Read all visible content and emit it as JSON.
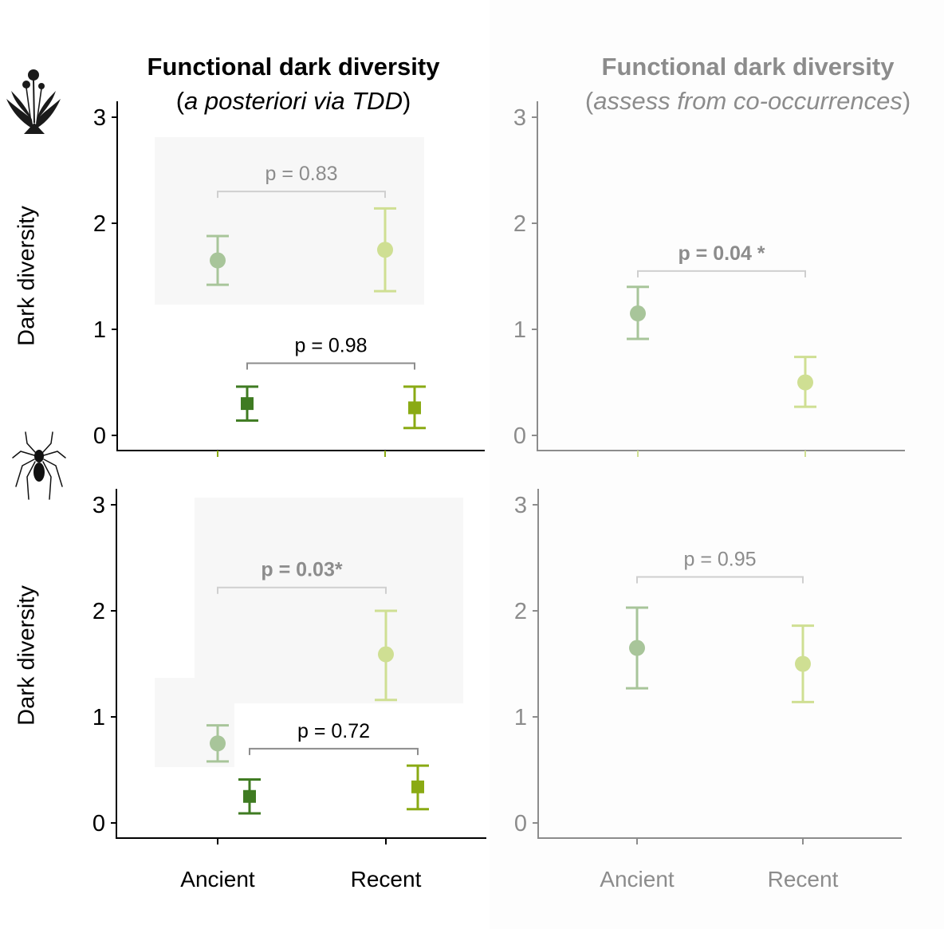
{
  "titles": {
    "left": {
      "line1": "Functional dark diversity",
      "line2_pre": "(",
      "line2_it": "a posteriori via TDD",
      "line2_post": ")"
    },
    "right": {
      "line1": "Functional dark diversity",
      "line2_pre": "(",
      "line2_it": "assess from co-occurrences",
      "line2_post": ")"
    }
  },
  "ylabels": {
    "top": "Dark diversity",
    "bottom": "Dark diversity"
  },
  "icons": {
    "top": "dandelion-plant-icon",
    "bottom": "spider-icon"
  },
  "colors": {
    "ancient_circle": "#a8c59a",
    "recent_circle": "#cfdf93",
    "ancient_square": "#3f7b22",
    "recent_square": "#8aaa14",
    "axis_dark": "#000000",
    "axis_grey": "#8c8c8c",
    "bracket_light": "#cfcfcf",
    "bracket_dark": "#8c8c8c"
  },
  "chart_data": [
    {
      "id": "top-left",
      "type": "scatter",
      "categories": [
        "Ancient",
        "Recent"
      ],
      "ylim": [
        0,
        3
      ],
      "yticks": [
        0,
        1,
        2,
        3
      ],
      "ylabel": "Dark diversity",
      "show_xlabels": false,
      "series": [
        {
          "shape": "circle",
          "points": [
            {
              "cat": 0,
              "y": 1.65,
              "lo": 1.42,
              "hi": 1.88
            },
            {
              "cat": 1,
              "y": 1.75,
              "lo": 1.36,
              "hi": 2.14
            }
          ]
        },
        {
          "shape": "square",
          "points": [
            {
              "cat": 0,
              "y": 0.3,
              "lo": 0.14,
              "hi": 0.46
            },
            {
              "cat": 1,
              "y": 0.26,
              "lo": 0.07,
              "hi": 0.46
            }
          ]
        }
      ],
      "annotations": [
        {
          "text": "p = 0.83",
          "y": 2.3,
          "bold": false,
          "style": "light"
        },
        {
          "text": "p = 0.98",
          "y": 0.68,
          "bold": false,
          "style": "dark"
        }
      ]
    },
    {
      "id": "top-right",
      "type": "scatter",
      "categories": [
        "Ancient",
        "Recent"
      ],
      "ylim": [
        0,
        3
      ],
      "yticks": [
        0,
        1,
        2,
        3
      ],
      "ylabel": "",
      "show_xlabels": false,
      "series": [
        {
          "shape": "circle",
          "points": [
            {
              "cat": 0,
              "y": 1.15,
              "lo": 0.91,
              "hi": 1.4
            },
            {
              "cat": 1,
              "y": 0.5,
              "lo": 0.27,
              "hi": 0.74
            }
          ]
        }
      ],
      "annotations": [
        {
          "text": "p = 0.04 *",
          "y": 1.55,
          "bold": true,
          "style": "light"
        }
      ]
    },
    {
      "id": "bottom-left",
      "type": "scatter",
      "categories": [
        "Ancient",
        "Recent"
      ],
      "ylim": [
        0,
        3
      ],
      "yticks": [
        0,
        1,
        2,
        3
      ],
      "ylabel": "Dark diversity",
      "show_xlabels": true,
      "series": [
        {
          "shape": "circle",
          "points": [
            {
              "cat": 0,
              "y": 0.75,
              "lo": 0.58,
              "hi": 0.92
            },
            {
              "cat": 1,
              "y": 1.59,
              "lo": 1.16,
              "hi": 2.0
            }
          ]
        },
        {
          "shape": "square",
          "points": [
            {
              "cat": 0,
              "y": 0.25,
              "lo": 0.09,
              "hi": 0.41
            },
            {
              "cat": 1,
              "y": 0.34,
              "lo": 0.13,
              "hi": 0.54
            }
          ]
        }
      ],
      "annotations": [
        {
          "text": "p = 0.03*",
          "y": 2.22,
          "bold": true,
          "style": "light"
        },
        {
          "text": "p = 0.72",
          "y": 0.7,
          "bold": false,
          "style": "dark"
        }
      ]
    },
    {
      "id": "bottom-right",
      "type": "scatter",
      "categories": [
        "Ancient",
        "Recent"
      ],
      "ylim": [
        0,
        3
      ],
      "yticks": [
        0,
        1,
        2,
        3
      ],
      "ylabel": "",
      "show_xlabels": true,
      "series": [
        {
          "shape": "circle",
          "points": [
            {
              "cat": 0,
              "y": 1.65,
              "lo": 1.27,
              "hi": 2.03
            },
            {
              "cat": 1,
              "y": 1.5,
              "lo": 1.14,
              "hi": 1.86
            }
          ]
        }
      ],
      "annotations": [
        {
          "text": "p = 0.95",
          "y": 2.32,
          "bold": false,
          "style": "light"
        }
      ]
    }
  ]
}
